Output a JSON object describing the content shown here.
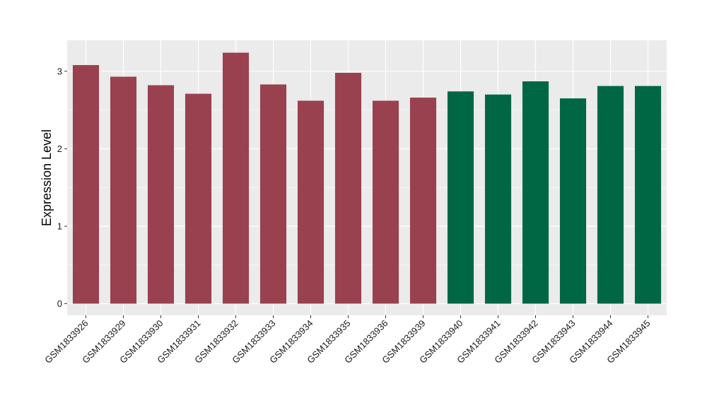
{
  "chart_data": {
    "type": "bar",
    "title": "",
    "xlabel": "",
    "ylabel": "Expression Level",
    "ylim": [
      -0.15,
      3.4
    ],
    "yticks": [
      0,
      1,
      2,
      3
    ],
    "grid": true,
    "legend": "none",
    "categories": [
      "GSM1833926",
      "GSM1833929",
      "GSM1833930",
      "GSM1833931",
      "GSM1833932",
      "GSM1833933",
      "GSM1833934",
      "GSM1833935",
      "GSM1833936",
      "GSM1833939",
      "GSM1833940",
      "GSM1833941",
      "GSM1833942",
      "GSM1833943",
      "GSM1833944",
      "GSM1833945"
    ],
    "values": [
      3.08,
      2.93,
      2.82,
      2.71,
      3.24,
      2.83,
      2.62,
      2.98,
      2.62,
      2.66,
      2.74,
      2.7,
      2.87,
      2.65,
      2.81,
      2.81
    ],
    "groups": [
      0,
      0,
      0,
      0,
      0,
      0,
      0,
      0,
      0,
      0,
      1,
      1,
      1,
      1,
      1,
      1
    ],
    "group_colors": [
      "#9a4150",
      "#006745"
    ],
    "panel_color": "#ebebeb",
    "grid_color": "#ffffff"
  }
}
